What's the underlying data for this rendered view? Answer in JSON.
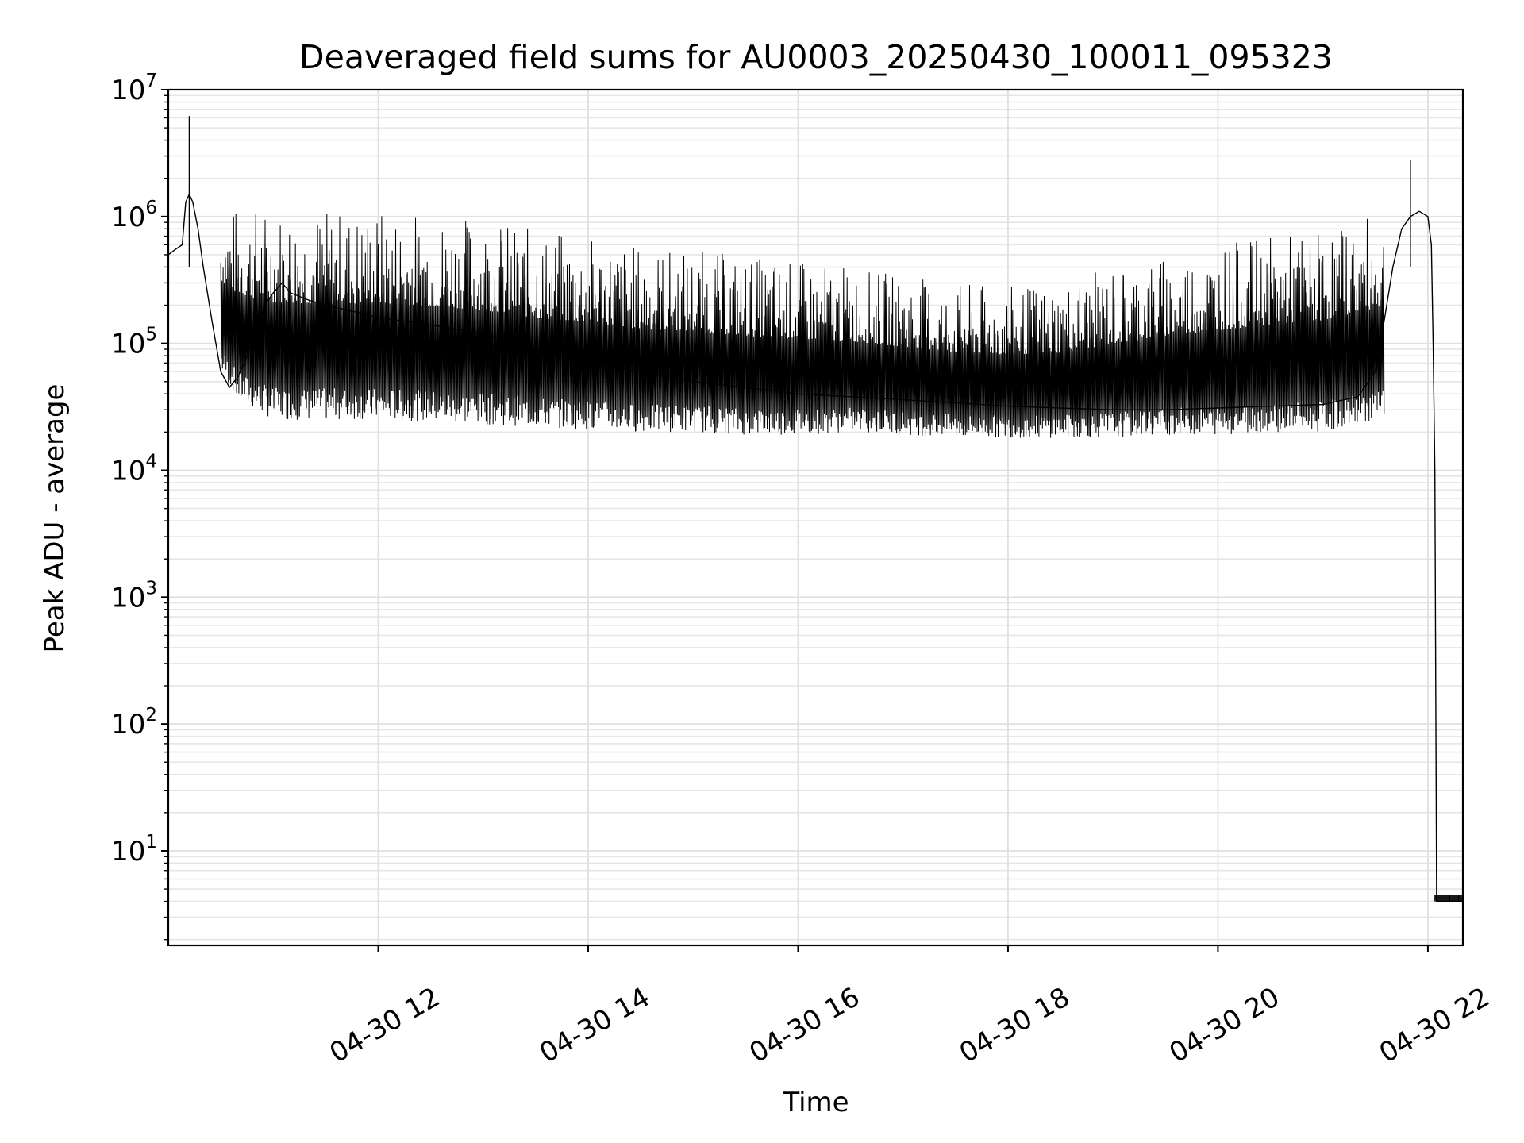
{
  "chart_data": {
    "type": "line",
    "title": "Deaveraged field sums for AU0003_20250430_100011_095323",
    "xlabel": "Time",
    "ylabel": "Peak ADU - average",
    "y_scale": "log",
    "x_axis_kind": "datetime",
    "xlim": [
      "2025-04-30 10:00",
      "2025-04-30 22:20"
    ],
    "ylim": [
      1.8,
      10000000
    ],
    "grid": true,
    "line_color": "#000000",
    "x_ticks": [
      {
        "time": "2025-04-30 12:00",
        "label": "04-30 12"
      },
      {
        "time": "2025-04-30 14:00",
        "label": "04-30 14"
      },
      {
        "time": "2025-04-30 16:00",
        "label": "04-30 16"
      },
      {
        "time": "2025-04-30 18:00",
        "label": "04-30 18"
      },
      {
        "time": "2025-04-30 20:00",
        "label": "04-30 20"
      },
      {
        "time": "2025-04-30 22:00",
        "label": "04-30 22"
      }
    ],
    "y_ticks": [
      {
        "value": 10,
        "base": "10",
        "exp": "1"
      },
      {
        "value": 100,
        "base": "10",
        "exp": "2"
      },
      {
        "value": 1000,
        "base": "10",
        "exp": "3"
      },
      {
        "value": 10000,
        "base": "10",
        "exp": "4"
      },
      {
        "value": 100000,
        "base": "10",
        "exp": "5"
      },
      {
        "value": 1000000,
        "base": "10",
        "exp": "6"
      },
      {
        "value": 10000000,
        "base": "10",
        "exp": "7"
      }
    ],
    "series": [
      {
        "x": [
          "2025-04-30 10:00",
          "2025-04-30 10:04",
          "2025-04-30 10:08",
          "2025-04-30 10:10",
          "2025-04-30 10:12",
          "2025-04-30 10:14",
          "2025-04-30 10:15",
          "2025-04-30 10:17",
          "2025-04-30 10:20",
          "2025-04-30 10:25",
          "2025-04-30 10:30",
          "2025-04-30 10:35",
          "2025-04-30 10:40",
          "2025-04-30 10:45",
          "2025-04-30 10:50",
          "2025-04-30 10:55",
          "2025-04-30 11:00",
          "2025-04-30 11:05",
          "2025-04-30 11:10",
          "2025-04-30 11:20",
          "2025-04-30 11:30",
          "2025-04-30 11:45",
          "2025-04-30 12:00",
          "2025-04-30 12:30",
          "2025-04-30 13:00",
          "2025-04-30 13:30",
          "2025-04-30 14:00",
          "2025-04-30 14:30",
          "2025-04-30 15:00",
          "2025-04-30 15:30",
          "2025-04-30 16:00",
          "2025-04-30 16:30",
          "2025-04-30 17:00",
          "2025-04-30 17:30",
          "2025-04-30 18:00",
          "2025-04-30 18:30",
          "2025-04-30 19:00",
          "2025-04-30 19:30",
          "2025-04-30 20:00",
          "2025-04-30 20:30",
          "2025-04-30 21:00",
          "2025-04-30 21:20",
          "2025-04-30 21:30",
          "2025-04-30 21:35",
          "2025-04-30 21:40",
          "2025-04-30 21:45",
          "2025-04-30 21:50",
          "2025-04-30 21:55",
          "2025-04-30 22:00",
          "2025-04-30 22:02",
          "2025-04-30 22:03",
          "2025-04-30 22:04",
          "2025-04-30 22:05",
          "2025-04-30 22:10",
          "2025-04-30 22:20"
        ],
        "y": [
          500000,
          550000,
          600000,
          1300000,
          1500000,
          1300000,
          1100000,
          800000,
          400000,
          150000,
          60000,
          45000,
          55000,
          80000,
          120000,
          200000,
          250000,
          300000,
          250000,
          220000,
          200000,
          180000,
          160000,
          140000,
          120000,
          90000,
          70000,
          60000,
          50000,
          45000,
          40000,
          38000,
          36000,
          34000,
          32000,
          31000,
          30000,
          30000,
          31000,
          32000,
          33000,
          38000,
          60000,
          150000,
          400000,
          800000,
          1000000,
          1100000,
          1000000,
          600000,
          100000,
          10000,
          4,
          4,
          4
        ]
      }
    ],
    "envelope": {
      "x": [
        "2025-04-30 10:00",
        "2025-04-30 10:30",
        "2025-04-30 10:40",
        "2025-04-30 11:00",
        "2025-04-30 11:30",
        "2025-04-30 12:00",
        "2025-04-30 12:30",
        "2025-04-30 13:00",
        "2025-04-30 13:30",
        "2025-04-30 14:00",
        "2025-04-30 14:30",
        "2025-04-30 15:00",
        "2025-04-30 15:30",
        "2025-04-30 16:00",
        "2025-04-30 16:30",
        "2025-04-30 17:00",
        "2025-04-30 17:30",
        "2025-04-30 18:00",
        "2025-04-30 18:30",
        "2025-04-30 19:00",
        "2025-04-30 19:30",
        "2025-04-30 20:00",
        "2025-04-30 20:30",
        "2025-04-30 21:00",
        "2025-04-30 21:30"
      ],
      "y_high": [
        600000,
        1200000,
        1200000,
        1200000,
        1150000,
        1150000,
        1100000,
        1000000,
        800000,
        700000,
        600000,
        550000,
        500000,
        450000,
        400000,
        350000,
        300000,
        280000,
        300000,
        400000,
        500000,
        600000,
        700000,
        800000,
        1000000
      ],
      "y_low": [
        400000,
        60000,
        35000,
        25000,
        25000,
        25000,
        24000,
        23000,
        22000,
        21000,
        20000,
        20000,
        19000,
        19000,
        20000,
        19000,
        18000,
        18000,
        18000,
        18000,
        19000,
        19000,
        20000,
        20000,
        25000
      ]
    },
    "spikes": [
      {
        "time": "2025-04-30 10:12",
        "value": 6200000
      },
      {
        "time": "2025-04-30 21:50",
        "value": 2800000
      }
    ]
  }
}
